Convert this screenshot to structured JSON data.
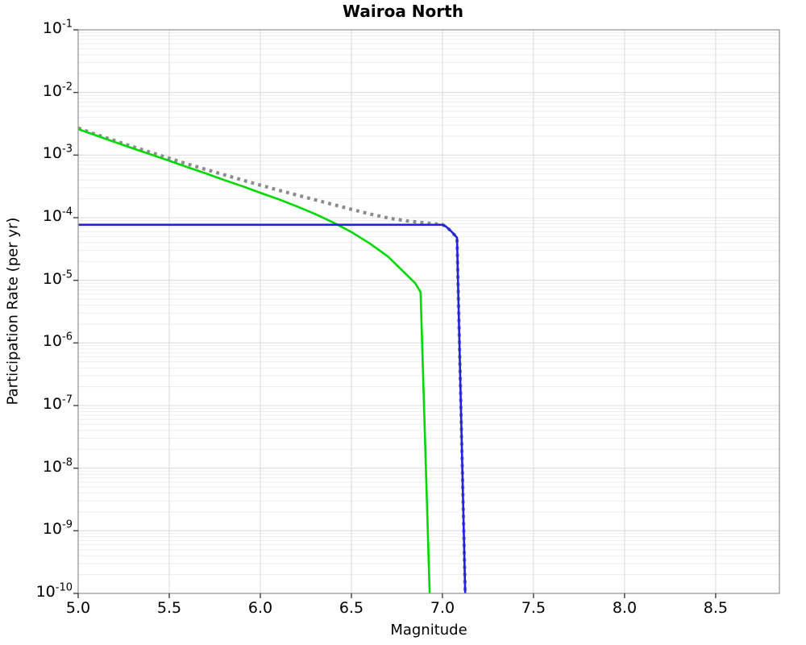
{
  "chart_data": {
    "type": "line",
    "title": "Wairoa North",
    "xlabel": "Magnitude",
    "ylabel": "Participation Rate (per yr)",
    "x_axis": {
      "scale": "linear",
      "min": 5.0,
      "max": 8.85,
      "tick_values": [
        5.0,
        5.5,
        6.0,
        6.5,
        7.0,
        7.5,
        8.0,
        8.5
      ],
      "tick_labels": [
        "5.0",
        "5.5",
        "6.0",
        "6.5",
        "7.0",
        "7.5",
        "8.0",
        "8.5"
      ]
    },
    "y_axis": {
      "scale": "log",
      "min": 1e-10,
      "max": 0.1,
      "tick_base": "10",
      "tick_exponents": [
        "-1",
        "-2",
        "-3",
        "-4",
        "-5",
        "-6",
        "-7",
        "-8",
        "-9",
        "-10"
      ]
    },
    "grid": {
      "major": true,
      "minor": true
    },
    "legend": "none",
    "colors": {
      "dotted_gray": "#8c8c8c",
      "solid_green": "#00d900",
      "solid_blue": "#2222dd",
      "grid_minor": "#ededed",
      "grid_major": "#dddddd",
      "frame": "#999999",
      "tick": "#333333"
    },
    "series": [
      {
        "id": "gray-dotted-curve",
        "color": "#8c8c8c",
        "style": "dotted",
        "width": 4.2,
        "points": [
          [
            5.0,
            0.0027
          ],
          [
            5.1,
            0.00212
          ],
          [
            5.2,
            0.0017
          ],
          [
            5.3,
            0.00136
          ],
          [
            5.4,
            0.0011
          ],
          [
            5.5,
            0.00089
          ],
          [
            5.6,
            0.00072
          ],
          [
            5.7,
            0.00059
          ],
          [
            5.8,
            0.000485
          ],
          [
            5.9,
            0.0004
          ],
          [
            6.0,
            0.00033
          ],
          [
            6.1,
            0.000275
          ],
          [
            6.2,
            0.00023
          ],
          [
            6.3,
            0.000193
          ],
          [
            6.4,
            0.000162
          ],
          [
            6.5,
            0.000136
          ],
          [
            6.6,
            0.000115
          ],
          [
            6.7,
            9.9e-05
          ],
          [
            6.8,
            8.9e-05
          ],
          [
            6.9,
            8.3e-05
          ],
          [
            6.95,
            8e-05
          ],
          [
            7.0,
            7.8e-05
          ],
          [
            7.02,
            7.2e-05
          ],
          [
            7.05,
            6e-05
          ],
          [
            7.08,
            4.8e-05
          ],
          [
            7.125,
            1e-10
          ]
        ]
      },
      {
        "id": "green-solid-curve",
        "color": "#00d900",
        "style": "solid",
        "width": 2.6,
        "points": [
          [
            5.0,
            0.0026
          ],
          [
            5.1,
            0.00205
          ],
          [
            5.2,
            0.00162
          ],
          [
            5.3,
            0.00128
          ],
          [
            5.4,
            0.00102
          ],
          [
            5.5,
            0.00081
          ],
          [
            5.6,
            0.00064
          ],
          [
            5.7,
            0.00051
          ],
          [
            5.8,
            0.0004
          ],
          [
            5.9,
            0.00032
          ],
          [
            6.0,
            0.00025
          ],
          [
            6.1,
            0.000197
          ],
          [
            6.2,
            0.000152
          ],
          [
            6.3,
            0.000115
          ],
          [
            6.4,
            8.4e-05
          ],
          [
            6.5,
            5.9e-05
          ],
          [
            6.6,
            3.9e-05
          ],
          [
            6.7,
            2.4e-05
          ],
          [
            6.8,
            1.25e-05
          ],
          [
            6.85,
            9e-06
          ],
          [
            6.88,
            6.5e-06
          ],
          [
            6.93,
            1e-10
          ]
        ]
      },
      {
        "id": "blue-solid-curve",
        "color": "#2222dd",
        "style": "solid",
        "width": 2.6,
        "points": [
          [
            5.0,
            7.7e-05
          ],
          [
            7.0,
            7.7e-05
          ],
          [
            7.02,
            7.2e-05
          ],
          [
            7.05,
            6e-05
          ],
          [
            7.08,
            4.8e-05
          ],
          [
            7.125,
            1e-10
          ]
        ]
      }
    ]
  }
}
